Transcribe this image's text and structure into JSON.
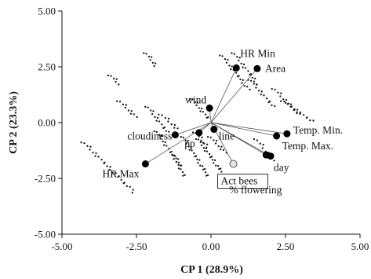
{
  "chart_data": {
    "type": "scatter",
    "subtype": "pca-biplot",
    "xlabel": "CP 1 (28.9%)",
    "ylabel": "CP 2 (23.3%)",
    "xlim": [
      -5.0,
      5.0
    ],
    "ylim": [
      -5.0,
      5.0
    ],
    "xticks": [
      "-5.00",
      "-2.50",
      "0.00",
      "2.50",
      "5.00"
    ],
    "yticks": [
      "5.00",
      "2.50",
      "0.00",
      "-2.50",
      "-5.00"
    ],
    "xtick_values": [
      -5.0,
      -2.5,
      0.0,
      2.5,
      5.0
    ],
    "ytick_values": [
      5.0,
      2.5,
      0.0,
      -2.5,
      -5.0
    ],
    "grid": false,
    "arrow_origin": [
      0.0,
      0.0
    ],
    "variables": [
      {
        "label": "HR Min",
        "x": 0.85,
        "y": 2.45,
        "marker": "filled"
      },
      {
        "label": "Area",
        "x": 1.55,
        "y": 2.42,
        "marker": "filled"
      },
      {
        "label": "wind",
        "x": -0.05,
        "y": 0.65,
        "marker": "filled"
      },
      {
        "label": "cloudiness",
        "x": -1.2,
        "y": -0.55,
        "marker": "filled"
      },
      {
        "label": "pp",
        "x": -0.4,
        "y": -0.45,
        "marker": "filled"
      },
      {
        "label": "line",
        "x": 0.1,
        "y": -0.3,
        "marker": "filled"
      },
      {
        "label": "Temp. Min.",
        "x": 2.55,
        "y": -0.5,
        "marker": "filled"
      },
      {
        "label": "Temp. Max.",
        "x": 2.2,
        "y": -0.6,
        "marker": "filled"
      },
      {
        "label": "day",
        "x": 2.0,
        "y": -1.5,
        "marker": "filled"
      },
      {
        "label": "HR Max",
        "x": -2.2,
        "y": -1.85,
        "marker": "filled"
      },
      {
        "label": "Act bees",
        "x": 0.75,
        "y": -1.85,
        "marker": "open",
        "boxed": true
      },
      {
        "label": "% flowering",
        "x": 1.85,
        "y": -1.45,
        "marker": "filled"
      }
    ],
    "observation_streaks": [
      {
        "from": [
          -4.3,
          -0.85
        ],
        "to": [
          -2.6,
          -3.1
        ],
        "n": 26
      },
      {
        "from": [
          -3.1,
          1.0
        ],
        "to": [
          -2.5,
          0.25
        ],
        "n": 10
      },
      {
        "from": [
          -3.4,
          2.15
        ],
        "to": [
          -3.1,
          1.75
        ],
        "n": 6
      },
      {
        "from": [
          -2.2,
          3.15
        ],
        "to": [
          -1.85,
          2.55
        ],
        "n": 8
      },
      {
        "from": [
          -2.15,
          0.75
        ],
        "to": [
          -1.45,
          -0.45
        ],
        "n": 14
      },
      {
        "from": [
          -1.85,
          -0.35
        ],
        "to": [
          -1.05,
          -1.9
        ],
        "n": 18
      },
      {
        "from": [
          -1.25,
          -1.4
        ],
        "to": [
          -0.9,
          -2.4
        ],
        "n": 12
      },
      {
        "from": [
          -1.7,
          0.4
        ],
        "to": [
          -1.1,
          -0.3
        ],
        "n": 9
      },
      {
        "from": [
          -0.65,
          1.1
        ],
        "to": [
          -0.1,
          0.2
        ],
        "n": 12
      },
      {
        "from": [
          -0.95,
          -0.6
        ],
        "to": [
          -0.1,
          -2.4
        ],
        "n": 22
      },
      {
        "from": [
          -0.45,
          -0.7
        ],
        "to": [
          0.35,
          -2.2
        ],
        "n": 20
      },
      {
        "from": [
          -0.05,
          -0.6
        ],
        "to": [
          0.5,
          -1.35
        ],
        "n": 10
      },
      {
        "from": [
          -0.55,
          -0.4
        ],
        "to": [
          -0.1,
          -1.1
        ],
        "n": 8
      },
      {
        "from": [
          0.35,
          3.05
        ],
        "to": [
          1.25,
          1.5
        ],
        "n": 18
      },
      {
        "from": [
          0.75,
          3.15
        ],
        "to": [
          1.55,
          1.75
        ],
        "n": 16
      },
      {
        "from": [
          1.3,
          1.95
        ],
        "to": [
          2.1,
          0.7
        ],
        "n": 14
      },
      {
        "from": [
          2.1,
          1.55
        ],
        "to": [
          2.95,
          0.35
        ],
        "n": 14
      },
      {
        "from": [
          2.4,
          1.0
        ],
        "to": [
          3.4,
          0.05
        ],
        "n": 14
      },
      {
        "from": [
          1.5,
          -0.7
        ],
        "to": [
          2.1,
          -1.7
        ],
        "n": 10
      }
    ]
  }
}
